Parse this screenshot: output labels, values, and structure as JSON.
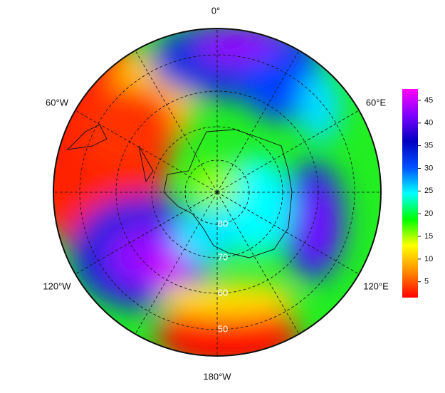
{
  "map": {
    "longitude_labels": [
      "0°",
      "60°E",
      "120°E",
      "180°W",
      "120°W",
      "60°W"
    ],
    "latitude_labels": [
      "80",
      "70",
      "60",
      "50"
    ],
    "colorbar": {
      "lim": [
        1.5,
        47.5
      ],
      "ticks": [
        5,
        10,
        15,
        20,
        25,
        30,
        35,
        40,
        45
      ],
      "colors": [
        "#ff0000",
        "#ff8c00",
        "#ffff00",
        "#00ff00",
        "#00ffff",
        "#0050ff",
        "#0000c0",
        "#8000ff",
        "#ff00ff"
      ]
    }
  }
}
